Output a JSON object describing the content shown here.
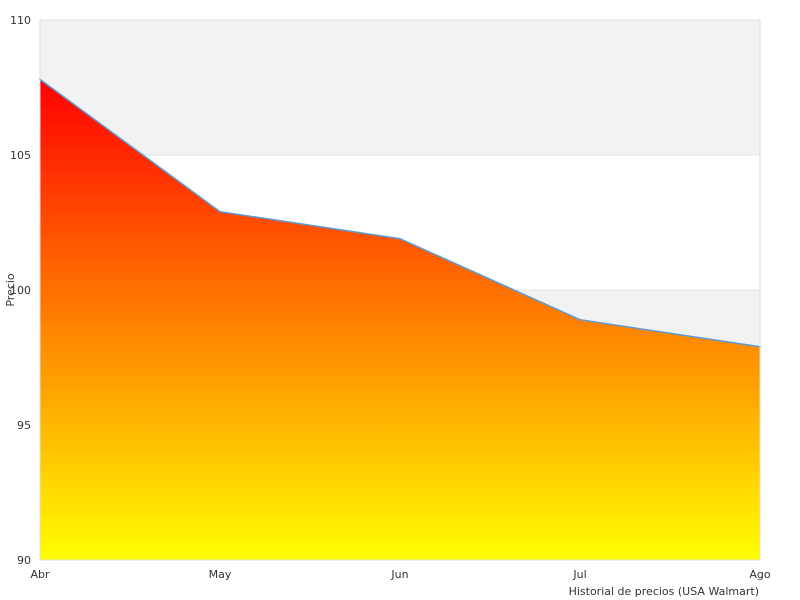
{
  "chart_data": {
    "type": "area",
    "categories": [
      "Abr",
      "May",
      "Jun",
      "Jul",
      "Ago"
    ],
    "series": [
      {
        "values": [
          107.8,
          102.9,
          101.9,
          98.9,
          97.9
        ]
      }
    ],
    "ylim": [
      90,
      110
    ],
    "yticks": [
      90,
      95,
      100,
      105,
      110
    ],
    "ylabel": "Precio",
    "xlabel": "",
    "caption": "Historial de precios (USA Walmart)",
    "grid": "alternating horizontal bands",
    "colors": {
      "band": "#f2f2f2",
      "gradient_top": "#ff0000",
      "gradient_bottom": "#ffff00",
      "line": "#5b9bd5",
      "frame": "#dddddd"
    }
  }
}
